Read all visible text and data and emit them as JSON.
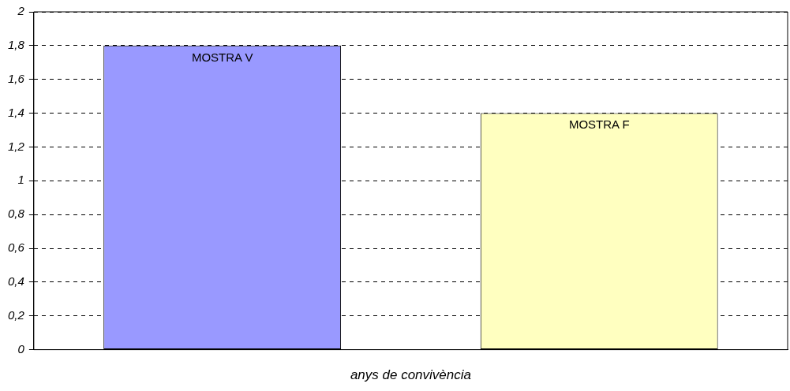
{
  "chart_data": {
    "type": "bar",
    "categories": [
      "MOSTRA V",
      "MOSTRA F"
    ],
    "values": [
      1.8,
      1.4
    ],
    "colors": [
      "#9999ff",
      "#ffffc0"
    ],
    "xlabel": "anys de convivència",
    "ylim": [
      0,
      2
    ],
    "yticks": [
      {
        "value": 0,
        "label": "0"
      },
      {
        "value": 0.2,
        "label": "0,2"
      },
      {
        "value": 0.4,
        "label": "0,4"
      },
      {
        "value": 0.6,
        "label": "0,6"
      },
      {
        "value": 0.8,
        "label": "0,8"
      },
      {
        "value": 1,
        "label": "1"
      },
      {
        "value": 1.2,
        "label": "1,2"
      },
      {
        "value": 1.4,
        "label": "1,4"
      },
      {
        "value": 1.6,
        "label": "1,6"
      },
      {
        "value": 1.8,
        "label": "1,8"
      },
      {
        "value": 2,
        "label": "2"
      }
    ],
    "grid": "y",
    "line_style": "dashed",
    "legend": false,
    "tick_labels": "y"
  }
}
